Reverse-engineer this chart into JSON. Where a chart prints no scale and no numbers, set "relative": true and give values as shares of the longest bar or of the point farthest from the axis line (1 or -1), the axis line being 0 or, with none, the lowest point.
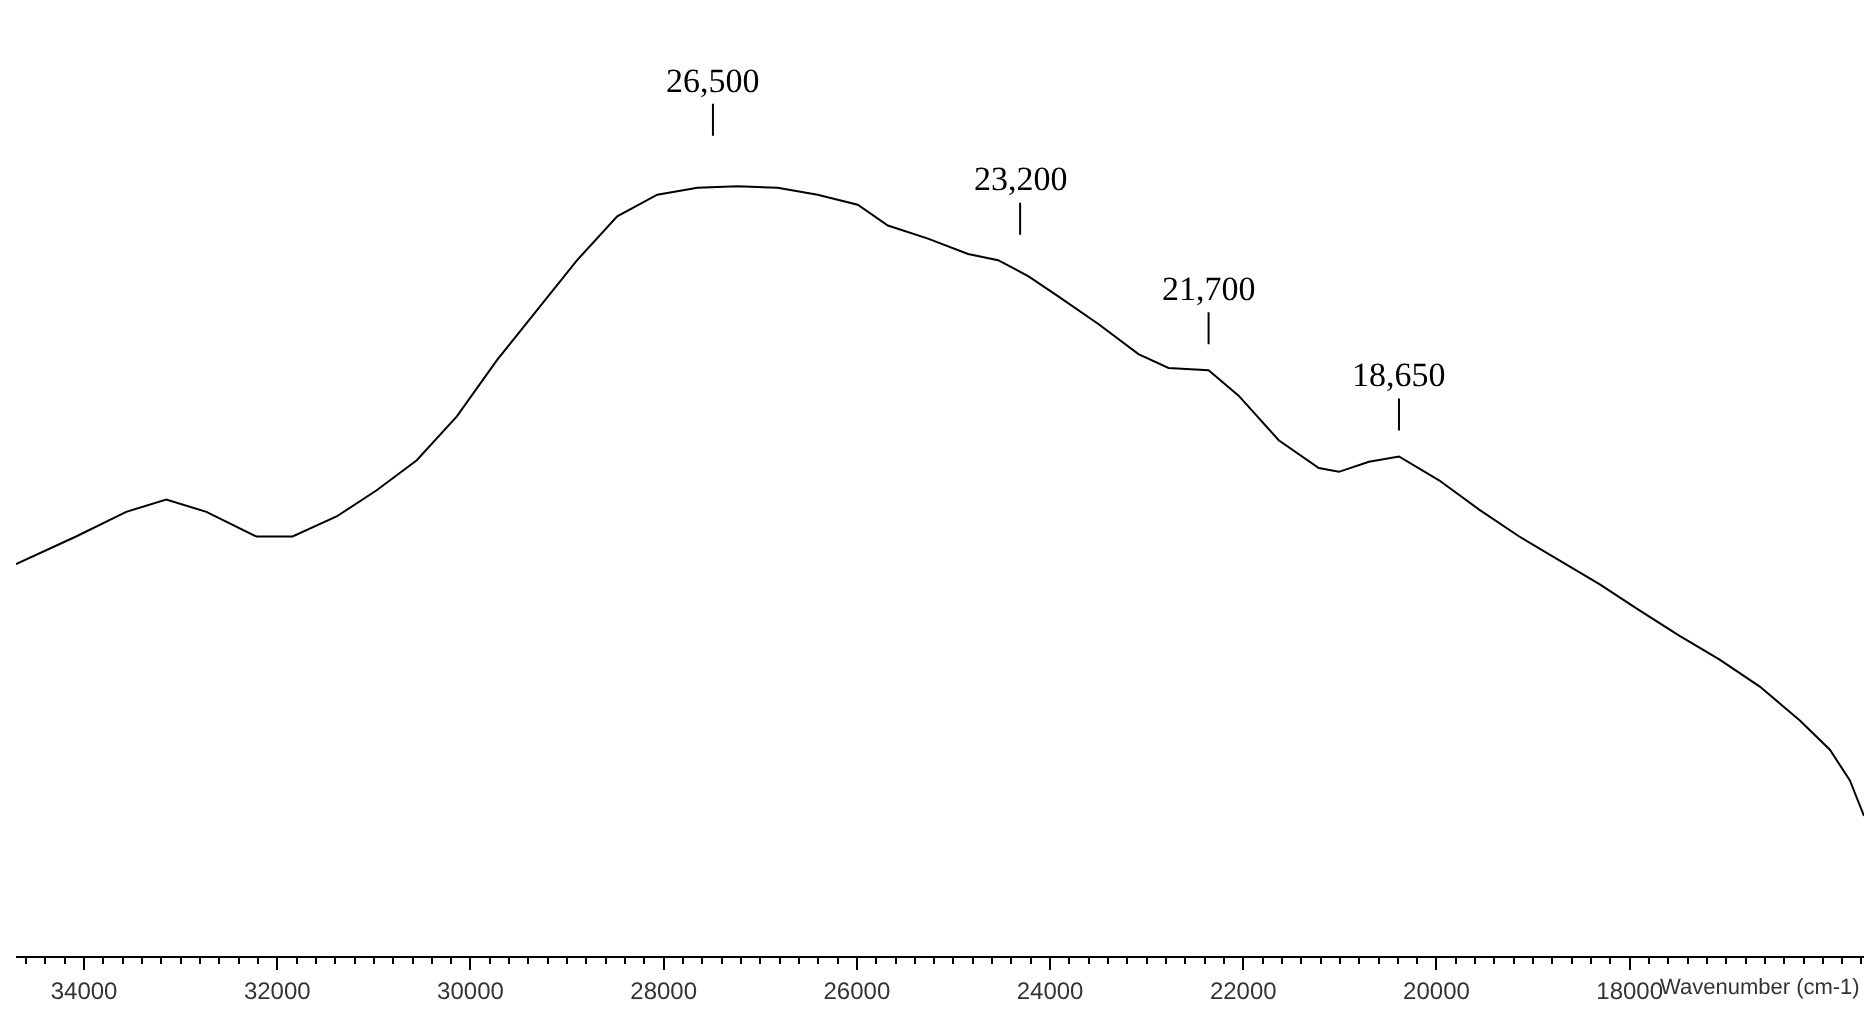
{
  "chart_data": {
    "type": "line",
    "relative": true,
    "xlabel": "Wavenumber (cm-1)",
    "xlim": [
      34705,
      15574
    ],
    "xticks": [
      34000,
      32000,
      30000,
      28000,
      26000,
      24000,
      22000,
      20000,
      18000
    ],
    "marker": "none",
    "line_style": "solid",
    "tick_labels": "x",
    "series": [
      {
        "color": "#000000",
        "x": [
          34705,
          34083,
          33564,
          33149,
          32734,
          32216,
          31842,
          31386,
          30971,
          30556,
          30141,
          29726,
          29311,
          28896,
          28481,
          28066,
          27651,
          27236,
          26821,
          26406,
          25991,
          25679,
          25264,
          24849,
          24538,
          24223,
          23915,
          23500,
          23085,
          22774,
          22359,
          22048,
          21633,
          21218,
          21010,
          20699,
          20388,
          19973,
          19558,
          19143,
          18728,
          18313,
          17898,
          17483,
          17068,
          16653,
          16238,
          15927,
          15720,
          15574
        ],
        "values": [
          0.509,
          0.545,
          0.577,
          0.593,
          0.577,
          0.545,
          0.545,
          0.571,
          0.605,
          0.644,
          0.701,
          0.774,
          0.839,
          0.904,
          0.961,
          0.989,
          0.998,
          1.0,
          0.998,
          0.989,
          0.976,
          0.949,
          0.932,
          0.912,
          0.904,
          0.883,
          0.857,
          0.821,
          0.782,
          0.764,
          0.761,
          0.728,
          0.67,
          0.634,
          0.629,
          0.642,
          0.649,
          0.618,
          0.58,
          0.545,
          0.514,
          0.483,
          0.449,
          0.416,
          0.385,
          0.35,
          0.306,
          0.268,
          0.228,
          0.182
        ]
      }
    ],
    "annotations": [
      {
        "text": "26,500",
        "x": 27490,
        "y": 0.998
      },
      {
        "text": "23,200",
        "x": 24310,
        "y": 0.885
      },
      {
        "text": "21,700",
        "x": 22359,
        "y": 0.761
      },
      {
        "text": "18,650",
        "x": 20388,
        "y": 0.649
      }
    ]
  }
}
